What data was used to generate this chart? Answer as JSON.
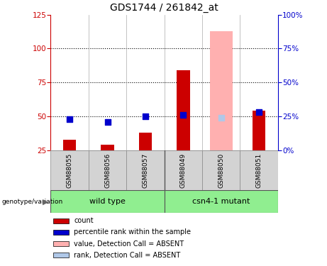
{
  "title": "GDS1744 / 261842_at",
  "samples": [
    "GSM88055",
    "GSM88056",
    "GSM88057",
    "GSM88049",
    "GSM88050",
    "GSM88051"
  ],
  "red_bars": [
    33,
    29,
    38,
    84,
    0,
    54
  ],
  "blue_dots_left_axis": [
    48,
    46,
    50,
    51,
    49,
    53
  ],
  "pink_bar_idx": 4,
  "pink_bar_value": 113,
  "light_blue_dot_idx": 4,
  "light_blue_dot_value": 49,
  "left_ylim": [
    25,
    125
  ],
  "left_yticks": [
    25,
    50,
    75,
    100,
    125
  ],
  "right_ylim": [
    0,
    100
  ],
  "right_yticks": [
    0,
    25,
    50,
    75,
    100
  ],
  "left_color": "#cc0000",
  "right_color": "#0000cc",
  "bar_width": 0.35,
  "pink_bar_width": 0.6,
  "dot_size": 40,
  "hlines": [
    50,
    75,
    100
  ],
  "group_divider": 2.5,
  "wt_label": "wild type",
  "csn_label": "csn4-1 mutant",
  "genotype_label": "genotype/variation",
  "legend_labels": [
    "count",
    "percentile rank within the sample",
    "value, Detection Call = ABSENT",
    "rank, Detection Call = ABSENT"
  ],
  "legend_colors": [
    "#cc0000",
    "#0000cc",
    "#ffb0b0",
    "#b0c8e8"
  ]
}
